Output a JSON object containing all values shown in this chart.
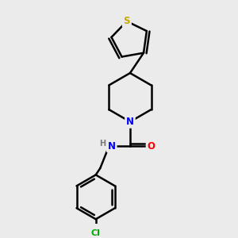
{
  "background_color": "#ebebeb",
  "bond_color": "#000000",
  "bond_width": 1.8,
  "atom_colors": {
    "S": "#c8a800",
    "N": "#0000ff",
    "O": "#ff0000",
    "Cl": "#00aa00",
    "C": "#000000",
    "H": "#7a7a7a"
  },
  "figsize": [
    3.0,
    3.0
  ],
  "dpi": 100,
  "xlim": [
    0,
    10
  ],
  "ylim": [
    0,
    10
  ]
}
